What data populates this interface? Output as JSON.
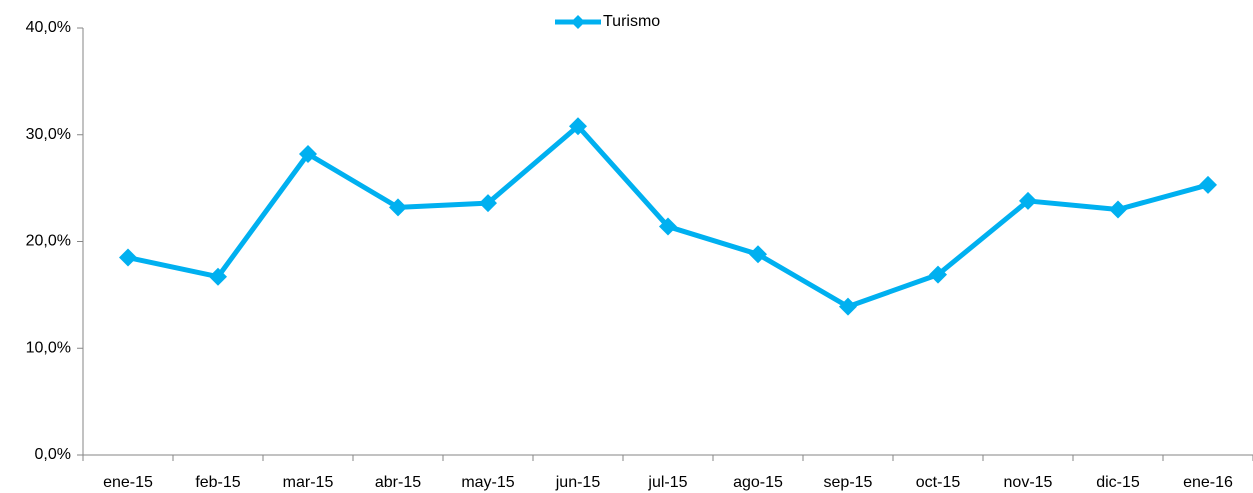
{
  "chart_data": {
    "type": "line",
    "categories": [
      "ene-15",
      "feb-15",
      "mar-15",
      "abr-15",
      "may-15",
      "jun-15",
      "jul-15",
      "ago-15",
      "sep-15",
      "oct-15",
      "nov-15",
      "dic-15",
      "ene-16"
    ],
    "series": [
      {
        "name": "Turismo",
        "color": "#00b0f0",
        "values": [
          18.5,
          16.7,
          28.2,
          23.2,
          23.6,
          30.8,
          21.4,
          18.8,
          13.9,
          16.9,
          23.8,
          23.0,
          25.3
        ]
      }
    ],
    "ylim": [
      0,
      40
    ],
    "yticks": [
      {
        "value": 0,
        "label": "0,0%"
      },
      {
        "value": 10,
        "label": "10,0%"
      },
      {
        "value": 20,
        "label": "20,0%"
      },
      {
        "value": 30,
        "label": "30,0%"
      },
      {
        "value": 40,
        "label": "40,0%"
      }
    ],
    "grid": false,
    "legend": "top"
  }
}
